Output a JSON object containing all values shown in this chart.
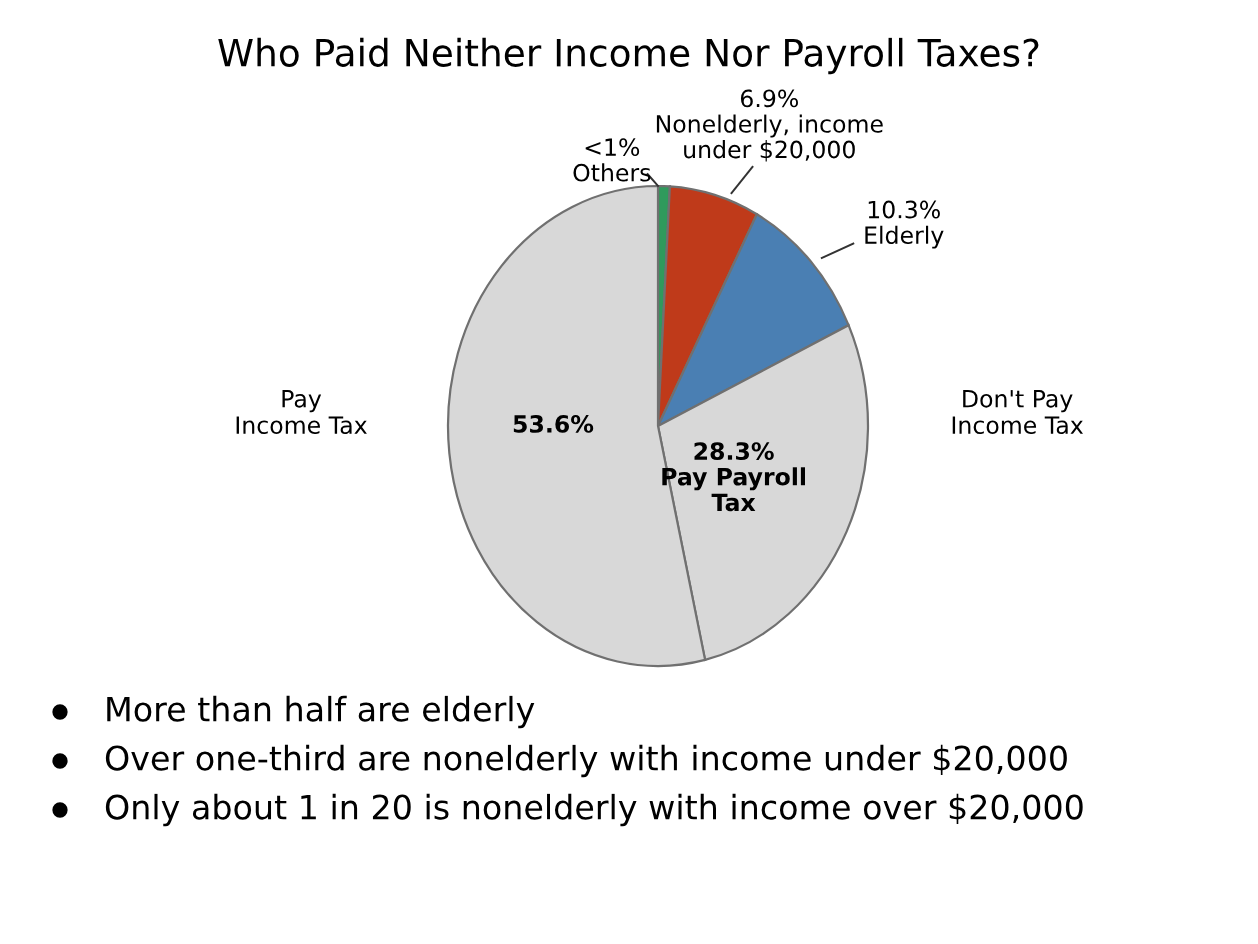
{
  "chart_data": {
    "type": "pie",
    "title": "Who Paid Neither Income Nor Payroll Taxes?",
    "categories": [
      "Others",
      "Nonelderly, income under $20,000",
      "Elderly",
      "Pay Payroll Tax",
      null
    ],
    "values": [
      0.9,
      6.9,
      10.3,
      28.3,
      53.6
    ],
    "value_labels": [
      "<1%",
      "6.9%",
      "10.3%",
      "28.3%",
      "53.6%"
    ],
    "colors": [
      "#2f9a5c",
      "#bf3a1a",
      "#4a7fb3",
      "#d8d8d8",
      "#d8d8d8"
    ],
    "annotations": [
      "Pay\nIncome Tax",
      "Don't Pay\nIncome Tax",
      "More than half are elderly",
      "Over one-third are nonelderly with income under $20,000",
      "Only about 1 in 20 is nonelderly with income over $20,000"
    ]
  }
}
